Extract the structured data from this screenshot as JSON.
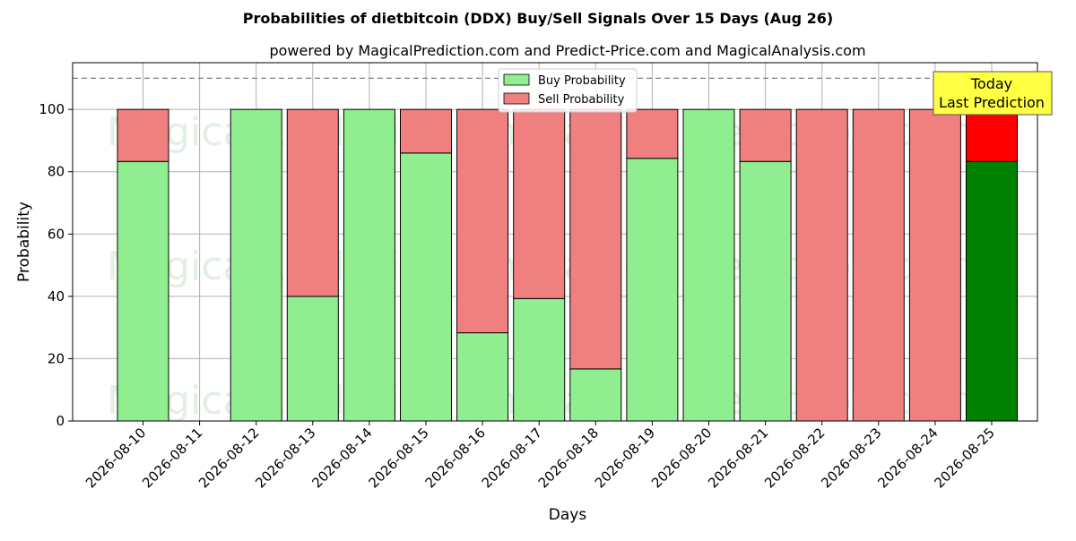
{
  "colors": {
    "buy": "#90ee90",
    "sell": "#f08080",
    "buy_today": "#008000",
    "sell_today": "#ff0000",
    "today_box": "#ffff44",
    "grid": "#b0b0b0",
    "dashed_line": "#808080"
  },
  "annotations": {
    "today_line1": "Today",
    "today_line2": "Last Prediction",
    "watermarks": [
      "MagicalAnalysis.com",
      "MagicalPrediction.com",
      "MagicalAnalysis.com",
      "MagicalPrediction.com",
      "MagicalAnalysis.com",
      "MagicalPrediction.com"
    ]
  },
  "chart_data": {
    "type": "bar",
    "stacked": true,
    "title": "Probabilities of dietbitcoin (DDX) Buy/Sell Signals Over 15 Days (Aug 26)",
    "subtitle": "powered by MagicalPrediction.com and Predict-Price.com and MagicalAnalysis.com",
    "xlabel": "Days",
    "ylabel": "Probability",
    "ylim": [
      0,
      115
    ],
    "yticks": [
      0,
      20,
      40,
      60,
      80,
      100
    ],
    "reference_line": 110,
    "grid": true,
    "legend_position": "top-center",
    "categories": [
      "2026-08-10",
      "2026-08-11",
      "2026-08-12",
      "2026-08-13",
      "2026-08-14",
      "2026-08-15",
      "2026-08-16",
      "2026-08-17",
      "2026-08-18",
      "2026-08-19",
      "2026-08-20",
      "2026-08-21",
      "2026-08-22",
      "2026-08-23",
      "2026-08-24",
      "2026-08-25"
    ],
    "series": [
      {
        "name": "Buy Probability",
        "values": [
          83.3,
          null,
          100,
          40,
          100,
          86,
          28.3,
          39.3,
          16.7,
          84.3,
          100,
          83.3,
          0,
          0,
          0,
          83.3
        ]
      },
      {
        "name": "Sell Probability",
        "values": [
          16.7,
          null,
          0,
          60,
          0,
          14,
          71.7,
          60.7,
          83.3,
          15.7,
          0,
          16.7,
          100,
          100,
          100,
          16.7
        ]
      }
    ]
  }
}
